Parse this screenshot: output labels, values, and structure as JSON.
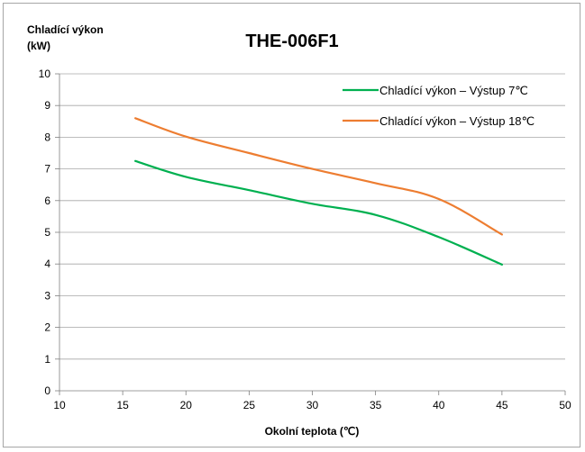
{
  "chart_data": {
    "type": "line",
    "title": "THE-006F1",
    "ylabel_line1": "Chladící výkon",
    "ylabel_line2": "(kW)",
    "xlabel": "Okolní teplota (℃)",
    "xlim": [
      10,
      50
    ],
    "ylim": [
      0,
      10
    ],
    "x_ticks": [
      10,
      15,
      20,
      25,
      30,
      35,
      40,
      45,
      50
    ],
    "y_ticks": [
      0,
      1,
      2,
      3,
      4,
      5,
      6,
      7,
      8,
      9,
      10
    ],
    "grid": "horizontal",
    "legend_position": "top-right",
    "series": [
      {
        "name": "Chladící výkon – Výstup 7℃",
        "color": "#00b050",
        "x": [
          16,
          20,
          25,
          30,
          35,
          40,
          45
        ],
        "y": [
          7.25,
          6.75,
          6.33,
          5.9,
          5.55,
          4.85,
          3.98
        ]
      },
      {
        "name": "Chladící výkon – Výstup 18℃",
        "color": "#ed7d31",
        "x": [
          16,
          20,
          25,
          30,
          35,
          40,
          45
        ],
        "y": [
          8.6,
          8.02,
          7.5,
          7.0,
          6.55,
          6.05,
          4.93
        ]
      }
    ]
  }
}
